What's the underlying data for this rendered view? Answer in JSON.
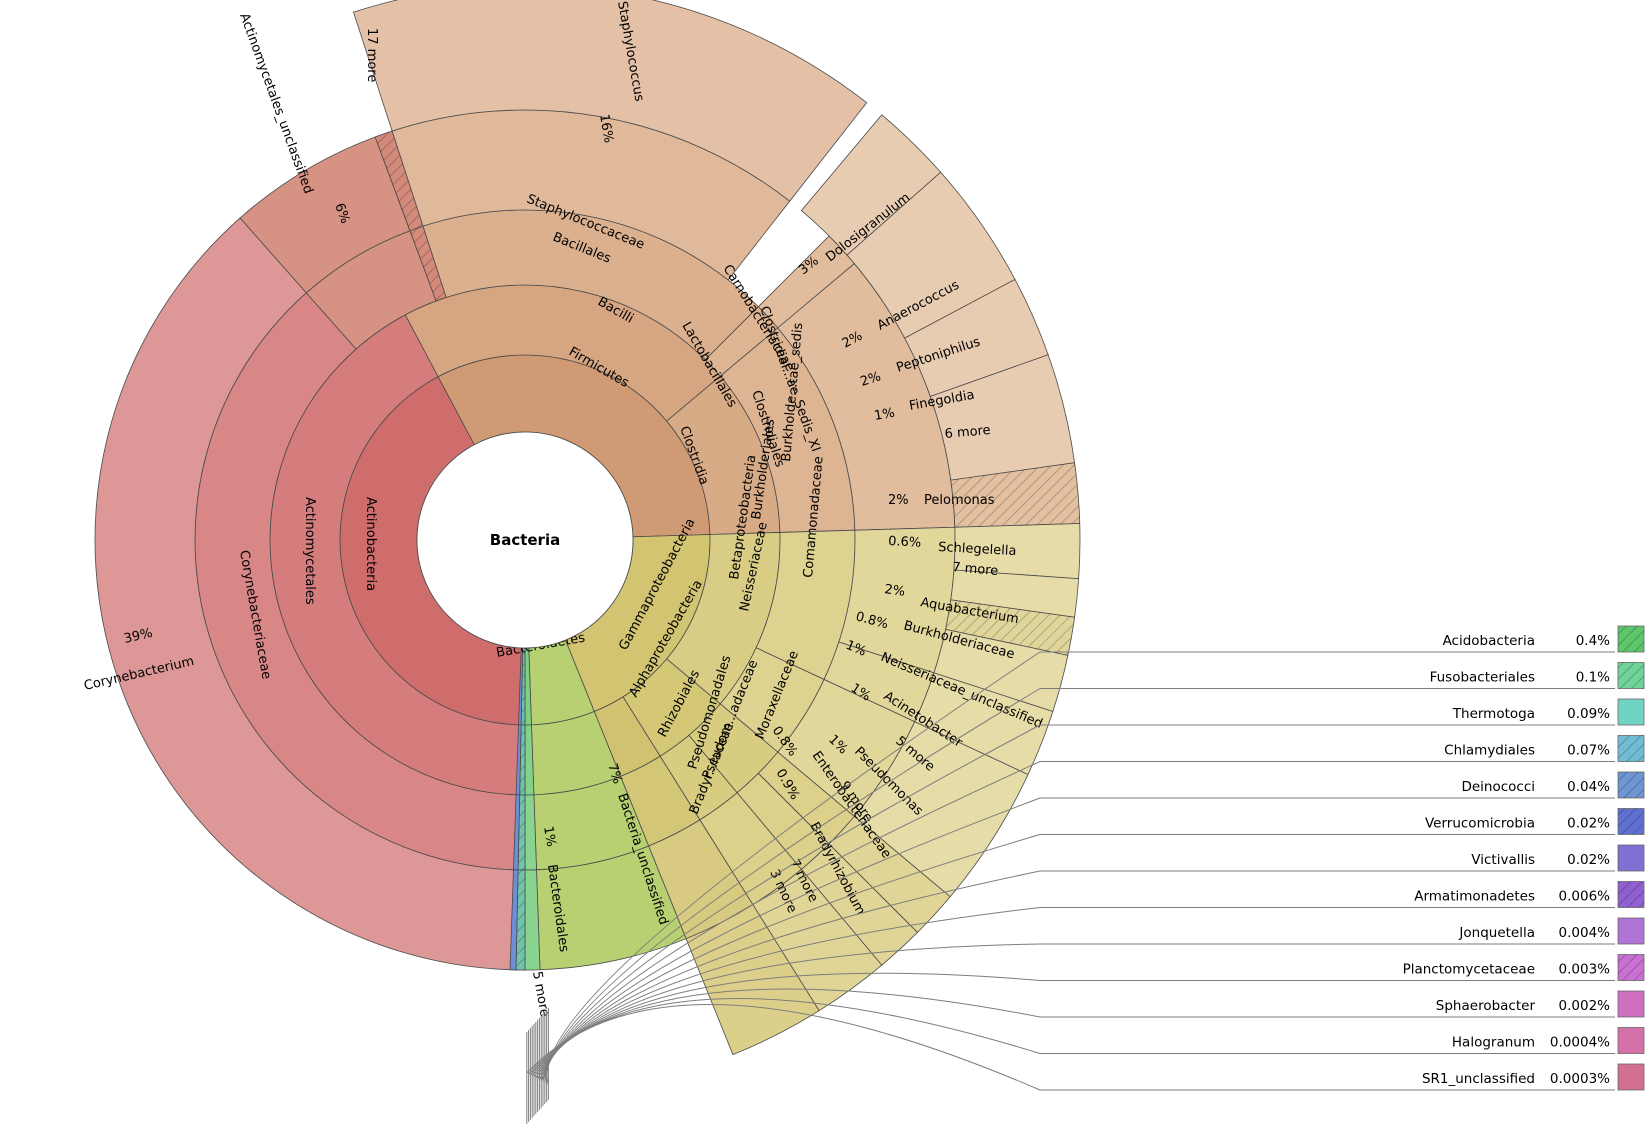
{
  "chart_data": {
    "type": "sunburst",
    "title": "Bacteria",
    "segments": [
      {
        "ring": 1,
        "name": "Actinobacteria",
        "a0": 180,
        "a1": 332,
        "label": "Actinobacteria",
        "color": "#cf6d6d"
      },
      {
        "ring": 2,
        "name": "Actinomycetales",
        "a0": 180,
        "a1": 332,
        "label": "Actinomycetales",
        "color": "#d57c7c"
      },
      {
        "ring": 3,
        "name": "Corynebacteriaceae",
        "a0": 180,
        "a1": 318.5,
        "label": "Corynebacteriaceae",
        "color": "#d98686"
      },
      {
        "ring": 4,
        "name": "Corynebacterium",
        "pct": "39%",
        "a0": 180,
        "a1": 318.5,
        "label": "Corynebacterium   39%",
        "color": "#dd9797"
      },
      {
        "ring": 3,
        "name": "Actinomycetales_unclassified",
        "a0": 318.5,
        "a1": 339.6,
        "color": "#d69282"
      },
      {
        "ring": 4,
        "name": "Actinomycetales_unclassified",
        "pct": "6%",
        "a0": 318.5,
        "a1": 339.6,
        "color": "#d69282"
      },
      {
        "ring": 3,
        "name": "17 more",
        "a0": 339.6,
        "a1": 342,
        "color": "#d38a7a",
        "hatch": true
      },
      {
        "ring": 4,
        "name": "17 more",
        "a0": 339.6,
        "a1": 342,
        "color": "#d38a7a",
        "hatch": true
      },
      {
        "ring": 1,
        "name": "Firmicutes",
        "a0": 332,
        "a1": 448.3,
        "label": "Firmicutes",
        "color": "#d09b74"
      },
      {
        "ring": 2,
        "name": "Bacilli",
        "a0": 332,
        "a1": 410,
        "label": "Bacilli",
        "color": "#d6a683"
      },
      {
        "ring": 3,
        "name": "Bacillales",
        "a0": 342,
        "a1": 405,
        "color": "#dbb08f"
      },
      {
        "ring": 4,
        "name": "Staphylococcaceae",
        "a0": 342,
        "a1": 398,
        "color": "#e0b99b"
      },
      {
        "ring": 5,
        "name": "Staphylococcus",
        "pct": "16%",
        "a0": 342,
        "a1": 398,
        "color": "#e3c0a6"
      },
      {
        "ring": 3,
        "name": "Lactobacillales",
        "a0": 405,
        "a1": 410,
        "color": "#ddb593"
      },
      {
        "ring": 4,
        "name": "Carnobacteriaceae",
        "a0": 405,
        "a1": 410,
        "color": "#e1bd9e"
      },
      {
        "ring": 5,
        "name": "Dolosigranulum",
        "pct": "3%",
        "a0": 400,
        "a1": 408.5,
        "color": "#e8ccb2"
      },
      {
        "ring": 2,
        "name": "Clostridia",
        "a0": 410,
        "a1": 448.3,
        "label": "Clostridia",
        "color": "#d8ab87"
      },
      {
        "ring": 3,
        "name": "Clostridiales",
        "a0": 410,
        "a1": 448.3,
        "color": "#ddb593"
      },
      {
        "ring": 4,
        "name": "Clostridial...ae_Sedis_XI",
        "a0": 410,
        "a1": 448.3,
        "color": "#e1bd9e"
      },
      {
        "ring": 5,
        "name": "Anaerococcus",
        "pct": "2%",
        "a0": 408.5,
        "a1": 422,
        "color": "#e8ccb2"
      },
      {
        "ring": 5,
        "name": "Peptoniphilus",
        "pct": "2%",
        "a0": 422,
        "a1": 430.5,
        "color": "#e8ccb2"
      },
      {
        "ring": 5,
        "name": "Finegoldia",
        "pct": "1%",
        "a0": 430.5,
        "a1": 442,
        "color": "#e8ccb2"
      },
      {
        "ring": 5,
        "name": "6 more",
        "a0": 442,
        "a1": 448.3,
        "color": "#e2c0a0",
        "hatch": true
      },
      {
        "ring": 1,
        "name": "Proteobacteria",
        "a0": 448.3,
        "a1": 518,
        "label": "Proteobacteria",
        "color": "#d2c470"
      },
      {
        "ring": 2,
        "name": "Betaproteobacteria",
        "a0": 448.3,
        "a1": 490,
        "label": "Betaproteobacteria",
        "color": "#d9cd86"
      },
      {
        "ring": 3,
        "name": "Burkholderiales",
        "a0": 448.3,
        "a1": 475,
        "label": "Burkholderiales",
        "color": "#ddd28f"
      },
      {
        "ring": 4,
        "name": "Comamonadaceae",
        "a0": 448.3,
        "a1": 468,
        "label": "Comamonadaceae",
        "color": "#e1d79b"
      },
      {
        "ring": 5,
        "name": "Pelomonas",
        "pct": "2%",
        "a0": 448.3,
        "a1": 454,
        "color": "#e5dca8"
      },
      {
        "ring": 5,
        "name": "Schlegelella",
        "pct": "0.6%",
        "a0": 454,
        "a1": 458,
        "color": "#e5dca8"
      },
      {
        "ring": 5,
        "name": "7 more",
        "a0": 458,
        "a1": 462,
        "color": "#e0d59a",
        "hatch": true
      },
      {
        "ring": 5,
        "name": "Aquabacterium",
        "pct": "2%",
        "a0": 462,
        "a1": 468,
        "color": "#e5dca8"
      },
      {
        "ring": 4,
        "name": "Burkholde...tae_sedis",
        "a0": 468,
        "a1": 475,
        "color": "#e1d79b"
      },
      {
        "ring": 5,
        "name": "Burkholderiaceae",
        "pct": "0.8%",
        "a0": 468,
        "a1": 475,
        "color": "#e5dca8"
      },
      {
        "ring": 3,
        "name": "Neisseriales",
        "a0": 475,
        "a1": 490,
        "color": "#ddd28f"
      },
      {
        "ring": 4,
        "name": "Neisseriaceae",
        "a0": 475,
        "a1": 490,
        "label": "Neisseriaceae",
        "color": "#e1d79b"
      },
      {
        "ring": 5,
        "name": "Neisseriaceae_unclassified",
        "pct": "1%",
        "a0": 475,
        "a1": 490,
        "color": "#e5dca8"
      },
      {
        "ring": 2,
        "name": "Gammaproteobacteria",
        "a0": 490,
        "a1": 508,
        "label": "Gammaproteobacteria",
        "color": "#d4c877"
      },
      {
        "ring": 3,
        "name": "Pseudomonadales",
        "a0": 490,
        "a1": 500,
        "color": "#d8cc80"
      },
      {
        "ring": 4,
        "name": "Moraxellaceae",
        "a0": 490,
        "a1": 495,
        "color": "#dcd08a"
      },
      {
        "ring": 5,
        "name": "Acinetobacter",
        "pct": "1%",
        "a0": 490,
        "a1": 495,
        "color": "#e0d596"
      },
      {
        "ring": 4,
        "name": "Pseudom...adaceae",
        "a0": 495,
        "a1": 500,
        "color": "#dcd08a"
      },
      {
        "ring": 5,
        "name": "Pseudomonas",
        "pct": "1%",
        "a0": 495,
        "a1": 500,
        "color": "#e0d596"
      },
      {
        "ring": 3,
        "name": "Enterobacteriales",
        "a0": 500,
        "a1": 508,
        "color": "#d8cc80"
      },
      {
        "ring": 4,
        "name": "Enterobacteriaceae",
        "a0": 500,
        "a1": 508,
        "color": "#dcd08a"
      },
      {
        "ring": 5,
        "name": "Enterobacteriaceae",
        "pct": "0.8%",
        "a0": 500,
        "a1": 508,
        "color": "#e0d596"
      },
      {
        "ring": 2,
        "name": "Alphaproteobacteria",
        "a0": 508,
        "a1": 518,
        "label": "Alphaproteobacteria",
        "color": "#d0c270"
      },
      {
        "ring": 3,
        "name": "Rhizobiales",
        "a0": 508,
        "a1": 518,
        "label": "Rhizobiales",
        "color": "#d4c677"
      },
      {
        "ring": 4,
        "name": "Bradyr...iaceae",
        "a0": 508,
        "a1": 518,
        "color": "#d8ca80"
      },
      {
        "ring": 5,
        "name": "Bradyrhizobium",
        "pct": "0.9%",
        "a0": 508,
        "a1": 518,
        "color": "#dccf8a"
      },
      {
        "ring": 1,
        "name": "Bacteria_unclassified",
        "a0": 518,
        "a1": 538,
        "color": "#b6d072"
      },
      {
        "ring": 2,
        "name": "Bacteria_unclassified",
        "a0": 518,
        "a1": 538,
        "color": "#b6d072"
      },
      {
        "ring": 3,
        "name": "Bacteria_unclassified",
        "a0": 518,
        "a1": 538,
        "color": "#b6d072"
      },
      {
        "ring": 4,
        "name": "Bacteria_unclassified",
        "pct": "7%",
        "a0": 518,
        "a1": 538,
        "color": "#b6d072"
      },
      {
        "ring": 1,
        "name": "Bacteroidetes",
        "a0": 538,
        "a1": 540,
        "label": "Bacteroidetes",
        "color": "#7fd083"
      },
      {
        "ring": 2,
        "name": "Bacteroidetes",
        "a0": 538,
        "a1": 540,
        "color": "#84d28a"
      },
      {
        "ring": 3,
        "name": "Bacteroidales",
        "a0": 538,
        "a1": 540,
        "color": "#8bd490"
      },
      {
        "ring": 4,
        "name": "Bacteroidales",
        "pct": "1%",
        "a0": 538,
        "a1": 540,
        "color": "#8bd490"
      },
      {
        "ring": 1,
        "name": "5 more",
        "a0": 540,
        "a1": 541.2,
        "color": "#6fc4aa",
        "hatch": true
      },
      {
        "ring": 2,
        "name": "5 more",
        "a0": 540,
        "a1": 541.2,
        "color": "#6fc4aa",
        "hatch": true
      },
      {
        "ring": 3,
        "name": "5 more",
        "a0": 540,
        "a1": 541.2,
        "color": "#6fc4aa",
        "hatch": true
      },
      {
        "ring": 4,
        "name": "5 more",
        "a0": 540,
        "a1": 541.2,
        "color": "#6fc4aa",
        "hatch": true
      },
      {
        "ring": 1,
        "name": "other phyla",
        "a0": 541.2,
        "a1": 542,
        "color": "#6f8ed8"
      },
      {
        "ring": 2,
        "name": "other phyla",
        "a0": 541.2,
        "a1": 542,
        "color": "#6f8ed8"
      },
      {
        "ring": 3,
        "name": "other phyla",
        "a0": 541.2,
        "a1": 542,
        "color": "#6f8ed8"
      },
      {
        "ring": 4,
        "name": "other phyla",
        "a0": 541.2,
        "a1": 542,
        "color": "#6f8ed8"
      }
    ],
    "outer_labels": [
      {
        "text": "Corynebacterium",
        "angle": 249
      },
      {
        "text": "39%",
        "angle": 249
      },
      {
        "text": "Actinomycetales_unclassified",
        "angle": 329
      },
      {
        "text": "6%",
        "angle": 329
      },
      {
        "text": "17 more",
        "angle": 341
      },
      {
        "text": "Staphylococcus",
        "angle": 370
      },
      {
        "text": "16%",
        "angle": 370
      },
      {
        "text": "Staphylococcaceae",
        "angle": 370
      },
      {
        "text": "Bacillales",
        "angle": 374
      },
      {
        "text": "Carnobacteriaceae",
        "angle": 405
      },
      {
        "text": "Lactobacillales",
        "angle": 407
      },
      {
        "text": "Clostridial...ae_Sedis_XI",
        "angle": 417
      },
      {
        "text": "Clostridiales",
        "angle": 425
      },
      {
        "text": "3%",
        "angle": 404
      },
      {
        "text": "Dolosigranulum",
        "angle": 404
      },
      {
        "text": "2%",
        "angle": 415
      },
      {
        "text": "Anaerococcus",
        "angle": 415
      },
      {
        "text": "2%",
        "angle": 426
      },
      {
        "text": "Peptoniphilus",
        "angle": 426
      },
      {
        "text": "1%",
        "angle": 436
      },
      {
        "text": "Finegoldia",
        "angle": 436
      },
      {
        "text": "6 more",
        "angle": 445
      },
      {
        "text": "2%",
        "angle": 451
      },
      {
        "text": "Pelomonas",
        "angle": 451
      },
      {
        "text": "0.6%",
        "angle": 456
      },
      {
        "text": "Schlegelella",
        "angle": 456
      },
      {
        "text": "7 more",
        "angle": 460
      },
      {
        "text": "2%",
        "angle": 465
      },
      {
        "text": "Aquabacterium",
        "angle": 465
      },
      {
        "text": "0.8%",
        "angle": 471
      },
      {
        "text": "Burkholderiaceae",
        "angle": 471
      },
      {
        "text": "1%",
        "angle": 478
      },
      {
        "text": "Neisseriaceae_unclassified",
        "angle": 478
      },
      {
        "text": "1%",
        "angle": 492
      },
      {
        "text": "Acinetobacter",
        "angle": 492
      },
      {
        "text": "5 more",
        "angle": 495
      },
      {
        "text": "1%",
        "angle": 498
      },
      {
        "text": "Pseudomonas",
        "angle": 498
      },
      {
        "text": "0.8%",
        "angle": 503
      },
      {
        "text": "Enterobacteriaceae",
        "angle": 503
      },
      {
        "text": "9 more",
        "angle": 507
      },
      {
        "text": "0.9%",
        "angle": 511
      },
      {
        "text": "Bradyrhizobium",
        "angle": 512
      },
      {
        "text": "7 more",
        "angle": 516
      },
      {
        "text": "3 more",
        "angle": 517
      },
      {
        "text": "Burkholde...tae_sedis",
        "angle": 470
      },
      {
        "text": "Pseudom...adaceae",
        "angle": 497
      },
      {
        "text": "Moraxellaceae",
        "angle": 492
      },
      {
        "text": "Bradyr...iaceae",
        "angle": 512
      },
      {
        "text": "Pseudomonadales",
        "angle": 496
      },
      {
        "text": "7%",
        "angle": 528
      },
      {
        "text": "Bacteria_unclassified",
        "angle": 528
      },
      {
        "text": "1%",
        "angle": 539
      },
      {
        "text": "Bacteroidales",
        "angle": 539
      },
      {
        "text": "5 more",
        "angle": 541
      }
    ],
    "legend": [
      {
        "name": "Acidobacteria",
        "pct": "0.4%",
        "color": "#5cc66b",
        "hatch": true
      },
      {
        "name": "Fusobacteriales",
        "pct": "0.1%",
        "color": "#6fd39a",
        "hatch": true
      },
      {
        "name": "Thermotoga",
        "pct": "0.09%",
        "color": "#6fd4c4",
        "hatch": false
      },
      {
        "name": "Chlamydiales",
        "pct": "0.07%",
        "color": "#6fbcd3",
        "hatch": true
      },
      {
        "name": "Deinococci",
        "pct": "0.04%",
        "color": "#6f95d3",
        "hatch": true
      },
      {
        "name": "Verrucomicrobia",
        "pct": "0.02%",
        "color": "#6070d0",
        "hatch": true
      },
      {
        "name": "Victivallis",
        "pct": "0.02%",
        "color": "#7f70d3",
        "hatch": false
      },
      {
        "name": "Armatimonadetes",
        "pct": "0.006%",
        "color": "#9160d0",
        "hatch": true
      },
      {
        "name": "Jonquetella",
        "pct": "0.004%",
        "color": "#b074d6",
        "hatch": false
      },
      {
        "name": "Planctomycetaceae",
        "pct": "0.003%",
        "color": "#c871d3",
        "hatch": true
      },
      {
        "name": "Sphaerobacter",
        "pct": "0.002%",
        "color": "#cf70c0",
        "hatch": false
      },
      {
        "name": "Halogranum",
        "pct": "0.0004%",
        "color": "#d371a8",
        "hatch": false
      },
      {
        "name": "SR1_unclassified",
        "pct": "0.0003%",
        "color": "#d3708f",
        "hatch": false
      }
    ]
  }
}
